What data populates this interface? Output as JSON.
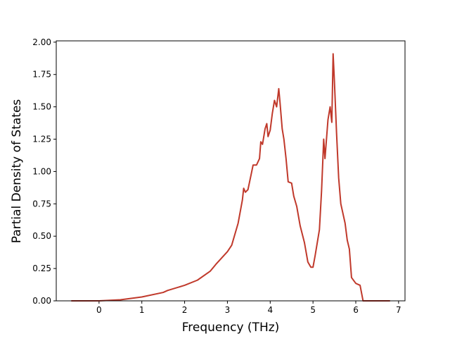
{
  "chart_data": {
    "type": "line",
    "xlabel": "Frequency (THz)",
    "ylabel": "Partial Density of States",
    "x": [
      -0.65,
      0,
      0.5,
      1,
      1.5,
      1.6,
      2,
      2.3,
      2.6,
      2.75,
      3.0,
      3.1,
      3.25,
      3.35,
      3.38,
      3.42,
      3.48,
      3.55,
      3.6,
      3.68,
      3.75,
      3.78,
      3.82,
      3.88,
      3.92,
      3.95,
      4.0,
      4.05,
      4.1,
      4.15,
      4.2,
      4.23,
      4.28,
      4.32,
      4.37,
      4.42,
      4.5,
      4.55,
      4.62,
      4.7,
      4.8,
      4.88,
      4.95,
      5.0,
      5.05,
      5.15,
      5.2,
      5.25,
      5.28,
      5.35,
      5.4,
      5.44,
      5.47,
      5.5,
      5.55,
      5.6,
      5.65,
      5.75,
      5.8,
      5.85,
      5.9,
      6.0,
      6.1,
      6.17,
      6.8
    ],
    "series": [
      {
        "color": "#c0392b",
        "values": [
          0,
          0,
          0.008,
          0.03,
          0.065,
          0.08,
          0.12,
          0.16,
          0.23,
          0.29,
          0.38,
          0.43,
          0.6,
          0.78,
          0.87,
          0.84,
          0.86,
          0.97,
          1.05,
          1.05,
          1.1,
          1.23,
          1.21,
          1.33,
          1.37,
          1.27,
          1.32,
          1.45,
          1.55,
          1.5,
          1.64,
          1.53,
          1.33,
          1.25,
          1.1,
          0.92,
          0.91,
          0.81,
          0.73,
          0.58,
          0.45,
          0.3,
          0.26,
          0.26,
          0.35,
          0.55,
          0.85,
          1.25,
          1.1,
          1.4,
          1.5,
          1.38,
          1.91,
          1.7,
          1.3,
          0.95,
          0.75,
          0.6,
          0.47,
          0.4,
          0.18,
          0.135,
          0.12,
          0,
          0
        ]
      }
    ],
    "xlim": [
      -1.0,
      7.15
    ],
    "ylim": [
      0,
      2.01
    ],
    "xticks": [
      0,
      1,
      2,
      3,
      4,
      5,
      6,
      7
    ],
    "yticks": [
      {
        "value": 0,
        "label": "0.00"
      },
      {
        "value": 0.25,
        "label": "0.25"
      },
      {
        "value": 0.5,
        "label": "0.50"
      },
      {
        "value": 0.75,
        "label": "0.75"
      },
      {
        "value": 1,
        "label": "1.00"
      },
      {
        "value": 1.25,
        "label": "1.25"
      },
      {
        "value": 1.5,
        "label": "1.50"
      },
      {
        "value": 1.75,
        "label": "1.75"
      },
      {
        "value": 2,
        "label": "2.00"
      }
    ]
  }
}
